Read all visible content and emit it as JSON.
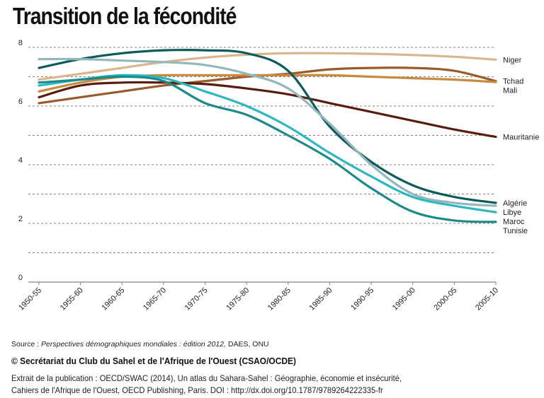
{
  "title": "Transition de la fécondité",
  "source": {
    "prefix": "Source : ",
    "italic": "Perspectives démographiques mondiales : édition 2012,",
    "suffix": " DAES, ONU"
  },
  "copyright": "© Secrétariat du Club du Sahel et de l'Afrique de l'Ouest (CSAO/OCDE)",
  "extract": {
    "line1": "Extrait de la publication   : OECD/SWAC (2014), Un atlas du Sahara-Sahel : Géographie, économie et insécurité,",
    "line2": "Cahiers de l'Afrique de l'Ouest, OECD Publishing, Paris. DOI : http://dx.doi.org/10.1787/9789264222335-fr"
  },
  "chart_data": {
    "type": "line",
    "title": "Transition de la fécondité",
    "xlabel": "",
    "ylabel": "",
    "x": [
      "1950-55",
      "1955-60",
      "1960-65",
      "1965-70",
      "1970-75",
      "1975-80",
      "1980-85",
      "1985-90",
      "1990-95",
      "1995-00",
      "2000-05",
      "2005-10"
    ],
    "ylim": [
      0,
      8
    ],
    "yticks": [
      0,
      2,
      4,
      6,
      8
    ],
    "grid": "dashed horizontal",
    "legend": "end-of-line labels, right",
    "series": [
      {
        "name": "Niger",
        "color": "#d9b68c",
        "values": [
          6.9,
          7.1,
          7.3,
          7.5,
          7.65,
          7.75,
          7.8,
          7.8,
          7.78,
          7.74,
          7.68,
          7.58
        ]
      },
      {
        "name": "Tchad",
        "color": "#9b5a2c",
        "values": [
          6.1,
          6.3,
          6.5,
          6.7,
          6.85,
          7.0,
          7.1,
          7.25,
          7.3,
          7.3,
          7.2,
          6.85
        ]
      },
      {
        "name": "Mali",
        "color": "#c98a3e",
        "values": [
          6.5,
          6.8,
          7.0,
          7.05,
          7.05,
          7.05,
          7.05,
          7.05,
          7.0,
          6.95,
          6.9,
          6.82
        ]
      },
      {
        "name": "Mauritanie",
        "color": "#5a1c0e",
        "values": [
          6.3,
          6.7,
          6.8,
          6.8,
          6.75,
          6.6,
          6.4,
          6.1,
          5.8,
          5.5,
          5.2,
          4.95
        ]
      },
      {
        "name": "Algérie",
        "color": "#0c5b5c",
        "values": [
          7.3,
          7.6,
          7.8,
          7.9,
          7.9,
          7.8,
          7.2,
          5.3,
          4.1,
          3.3,
          2.9,
          2.7
        ]
      },
      {
        "name": "Libye",
        "color": "#94b7bd",
        "values": [
          7.6,
          7.6,
          7.55,
          7.5,
          7.4,
          7.1,
          6.6,
          5.4,
          4.0,
          3.0,
          2.7,
          2.6
        ]
      },
      {
        "name": "Maroc",
        "color": "#2db7c1",
        "values": [
          6.7,
          6.9,
          7.05,
          6.95,
          6.5,
          6.0,
          5.3,
          4.4,
          3.6,
          2.9,
          2.6,
          2.38
        ]
      },
      {
        "name": "Tunisie",
        "color": "#1d8a8a",
        "values": [
          6.8,
          6.9,
          7.0,
          6.85,
          6.1,
          5.7,
          5.0,
          4.2,
          3.2,
          2.4,
          2.1,
          2.05
        ]
      }
    ]
  }
}
